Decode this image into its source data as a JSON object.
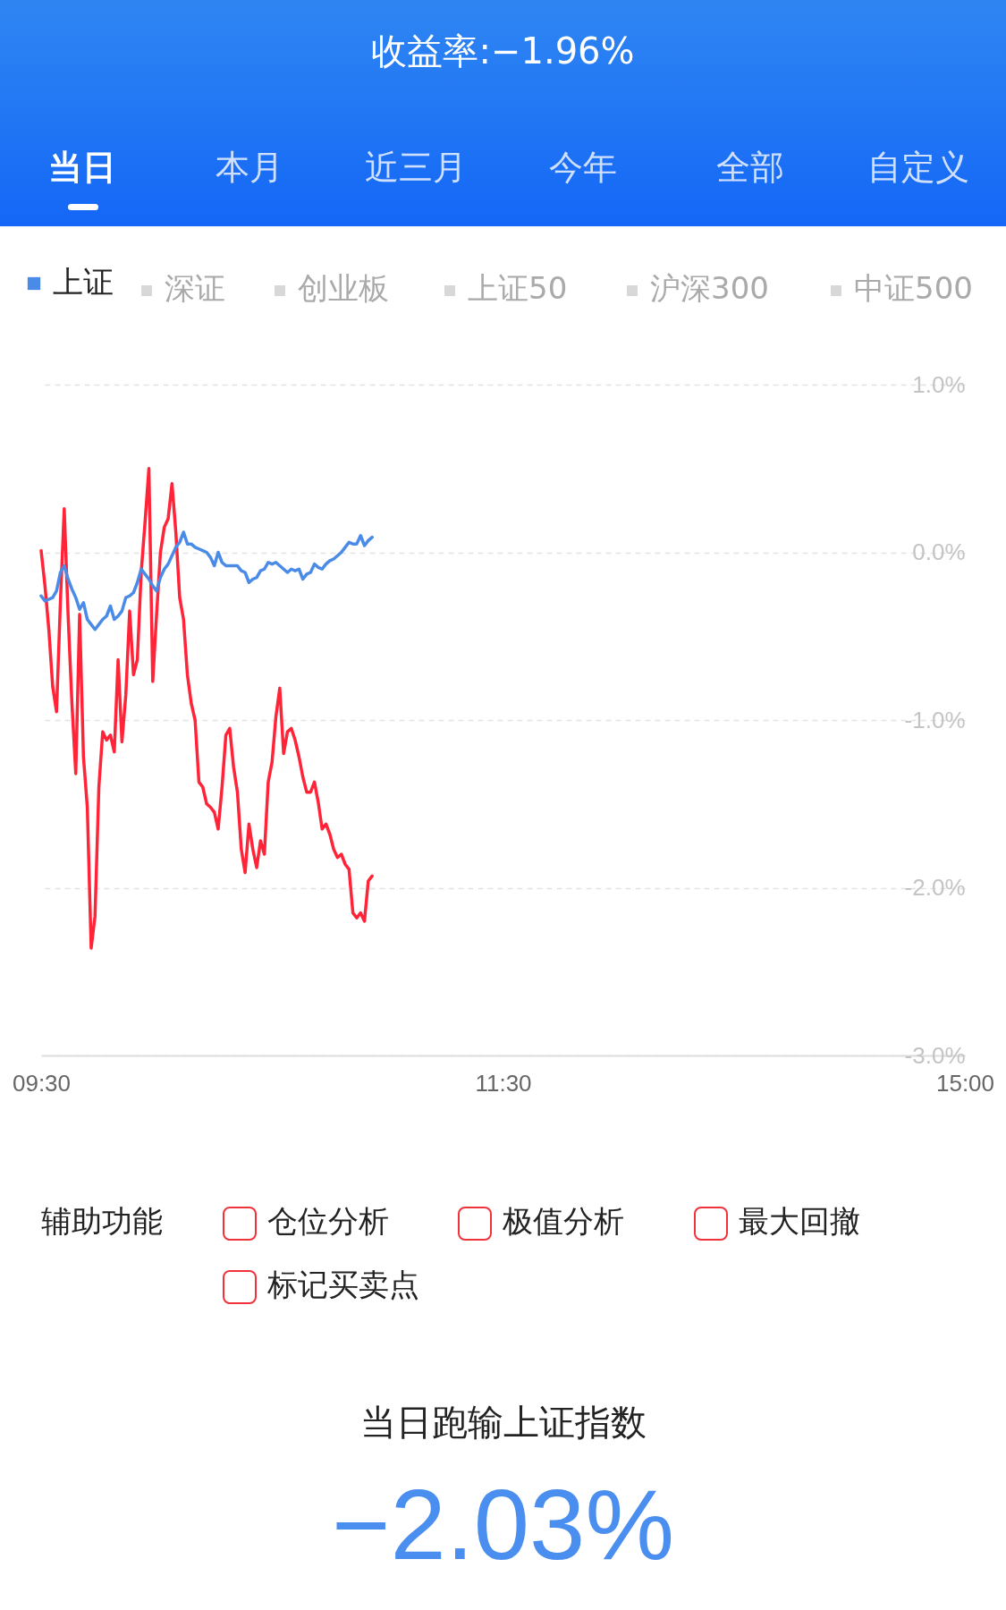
{
  "chart_data": {
    "type": "line",
    "title": "收益率:−1.96%",
    "annotations": [
      "当日",
      "本月",
      "近三月",
      "今年",
      "全部",
      "自定义",
      "深证",
      "创业板",
      "上证50",
      "沪深300",
      "中证500",
      "辅助功能",
      "仓位分析",
      "极值分析",
      "最大回撤",
      "标记买卖点",
      "当日跑输上证指数",
      "−2.03%"
    ],
    "categories": [
      "09:30",
      null,
      null,
      null,
      null,
      null,
      null,
      null,
      null,
      null,
      null,
      null,
      null,
      null,
      null,
      null,
      null,
      null,
      null,
      null,
      null,
      null,
      null,
      null,
      null,
      null,
      null,
      null,
      null,
      null,
      null,
      null,
      null,
      null,
      null,
      null,
      null,
      null,
      null,
      null,
      null,
      null,
      null,
      null,
      null,
      null,
      null,
      null,
      null,
      null,
      null,
      null,
      null,
      null,
      null,
      null,
      null,
      null,
      null,
      null,
      null,
      null,
      null,
      null,
      null,
      null,
      null,
      null,
      null,
      null,
      null,
      null,
      null,
      null,
      null,
      null,
      null,
      null,
      null,
      null,
      null,
      null,
      null,
      null,
      null,
      null,
      null,
      null,
      null,
      null,
      null,
      null,
      null,
      null,
      null,
      null,
      null,
      null,
      null,
      null,
      null,
      null,
      null,
      null,
      null,
      null,
      null,
      null,
      null,
      null,
      null,
      null,
      null,
      null,
      null,
      null,
      null,
      null,
      null,
      null,
      "11:30",
      null,
      null,
      null,
      null,
      null,
      null,
      null,
      null,
      null,
      null,
      null,
      null,
      null,
      null,
      null,
      null,
      null,
      null,
      null,
      null,
      null,
      null,
      null,
      null,
      null,
      null,
      null,
      null,
      null,
      null,
      null,
      null,
      null,
      null,
      null,
      null,
      null,
      null,
      null,
      null,
      null,
      null,
      null,
      null,
      null,
      null,
      null,
      null,
      null,
      null,
      null,
      null,
      null,
      null,
      null,
      null,
      null,
      null,
      null,
      null,
      null,
      null,
      null,
      null,
      null,
      null,
      null,
      null,
      null,
      null,
      null,
      null,
      null,
      null,
      null,
      null,
      null,
      null,
      null,
      null,
      null,
      null,
      null,
      null,
      null,
      null,
      null,
      null,
      null,
      null,
      null,
      null,
      null,
      null,
      null,
      null,
      null,
      null,
      null,
      null,
      null,
      null,
      null,
      null,
      null,
      null,
      null,
      null,
      null,
      null,
      null,
      null,
      null,
      null,
      null,
      null,
      null,
      null,
      null,
      "15:00"
    ],
    "series": [
      {
        "color": "#ff2438",
        "values": [
          0.01,
          -0.2,
          -0.46,
          -0.8,
          -0.95,
          -0.3,
          0.26,
          -0.37,
          -0.9,
          -1.32,
          -0.37,
          -1.22,
          -1.52,
          -2.36,
          -2.17,
          -1.4,
          -1.07,
          -1.12,
          -1.09,
          -1.19,
          -0.64,
          -1.13,
          -0.85,
          -0.35,
          -0.73,
          -0.64,
          -0.12,
          0.18,
          0.5,
          -0.77,
          -0.37,
          0.0,
          0.15,
          0.2,
          0.41,
          0.12,
          -0.27,
          -0.4,
          -0.73,
          -0.9,
          -1.0,
          -1.37,
          -1.4,
          -1.5,
          -1.52,
          -1.55,
          -1.65,
          -1.4,
          -1.09,
          -1.05,
          -1.28,
          -1.43,
          -1.77,
          -1.91,
          -1.62,
          -1.77,
          -1.88,
          -1.72,
          -1.8,
          -1.37,
          -1.25,
          -0.98,
          -0.81,
          -1.2,
          -1.07,
          -1.05,
          -1.12,
          -1.22,
          -1.34,
          -1.43,
          -1.43,
          -1.37,
          -1.49,
          -1.65,
          -1.62,
          -1.68,
          -1.77,
          -1.82,
          -1.8,
          -1.86,
          -1.89,
          -2.15,
          -2.18,
          -2.15,
          -2.2,
          -1.96,
          -1.93,
          null,
          null,
          null,
          null,
          null,
          null,
          null,
          null,
          null,
          null,
          null,
          null,
          null,
          null,
          null,
          null,
          null,
          null,
          null,
          null,
          null,
          null,
          null,
          null,
          null,
          null,
          null,
          null,
          null,
          null,
          null,
          null,
          null,
          null,
          null,
          null,
          null,
          null,
          null,
          null,
          null,
          null,
          null,
          null,
          null,
          null,
          null,
          null,
          null,
          null,
          null,
          null,
          null,
          null,
          null,
          null,
          null,
          null,
          null,
          null,
          null,
          null,
          null,
          null,
          null,
          null,
          null,
          null,
          null,
          null,
          null,
          null,
          null,
          null,
          null,
          null,
          null,
          null,
          null,
          null,
          null,
          null,
          null,
          null,
          null,
          null,
          null,
          null,
          null,
          null,
          null,
          null,
          null,
          null,
          null,
          null,
          null,
          null,
          null,
          null,
          null,
          null,
          null,
          null,
          null,
          null,
          null,
          null,
          null,
          null,
          null,
          null,
          null,
          null,
          null,
          null,
          null,
          null,
          null,
          null,
          null,
          null,
          null,
          null,
          null,
          null,
          null,
          null,
          null,
          null,
          null,
          null,
          null,
          null,
          null,
          null,
          null,
          null,
          null,
          null,
          null,
          null,
          null,
          null,
          null,
          null,
          null,
          null,
          null,
          null,
          null,
          null,
          null,
          null
        ]
      },
      {
        "name": "上证",
        "color": "#4a8be8",
        "values": [
          -0.26,
          -0.29,
          -0.28,
          -0.27,
          -0.23,
          -0.12,
          -0.08,
          -0.16,
          -0.22,
          -0.27,
          -0.34,
          -0.3,
          -0.4,
          -0.43,
          -0.46,
          -0.43,
          -0.4,
          -0.38,
          -0.32,
          -0.4,
          -0.38,
          -0.35,
          -0.27,
          -0.26,
          -0.24,
          -0.18,
          -0.1,
          -0.13,
          -0.16,
          -0.2,
          -0.23,
          -0.15,
          -0.1,
          -0.07,
          -0.02,
          0.03,
          0.06,
          0.12,
          0.05,
          0.05,
          0.03,
          0.02,
          0.01,
          0.0,
          -0.03,
          -0.08,
          0.0,
          -0.06,
          -0.08,
          -0.08,
          -0.08,
          -0.08,
          -0.11,
          -0.12,
          -0.18,
          -0.16,
          -0.15,
          -0.11,
          -0.1,
          -0.06,
          -0.07,
          -0.06,
          -0.08,
          -0.1,
          -0.12,
          -0.1,
          -0.11,
          -0.1,
          -0.16,
          -0.13,
          -0.12,
          -0.07,
          -0.09,
          -0.1,
          -0.07,
          -0.05,
          -0.04,
          -0.02,
          0.0,
          0.03,
          0.06,
          0.05,
          0.05,
          0.1,
          0.04,
          0.07,
          0.09,
          null,
          null,
          null,
          null,
          null,
          null,
          null,
          null,
          null,
          null,
          null,
          null,
          null,
          null,
          null,
          null,
          null,
          null,
          null,
          null,
          null,
          null,
          null,
          null,
          null,
          null,
          null,
          null,
          null,
          null,
          null,
          null,
          null,
          null,
          null,
          null,
          null,
          null,
          null,
          null,
          null,
          null,
          null,
          null,
          null,
          null,
          null,
          null,
          null,
          null,
          null,
          null,
          null,
          null,
          null,
          null,
          null,
          null,
          null,
          null,
          null,
          null,
          null,
          null,
          null,
          null,
          null,
          null,
          null,
          null,
          null,
          null,
          null,
          null,
          null,
          null,
          null,
          null,
          null,
          null,
          null,
          null,
          null,
          null,
          null,
          null,
          null,
          null,
          null,
          null,
          null,
          null,
          null,
          null,
          null,
          null,
          null,
          null,
          null,
          null,
          null,
          null,
          null,
          null,
          null,
          null,
          null,
          null,
          null,
          null,
          null,
          null,
          null,
          null,
          null,
          null,
          null,
          null,
          null,
          null,
          null,
          null,
          null,
          null,
          null,
          null,
          null,
          null,
          null,
          null,
          null,
          null,
          null,
          null,
          null,
          null,
          null,
          null,
          null,
          null,
          null,
          null,
          null,
          null,
          null,
          null,
          null,
          null,
          null,
          null,
          null,
          null,
          null,
          null
        ]
      }
    ],
    "ylim": [
      -3,
      1
    ],
    "yticks": [
      {
        "value": 1,
        "label": "1.0%"
      },
      {
        "value": 0,
        "label": "0.0%"
      },
      {
        "value": -1,
        "label": "-1.0%"
      },
      {
        "value": -2,
        "label": "-2.0%"
      },
      {
        "value": -3,
        "label": "-3.0%"
      }
    ],
    "grid": "y",
    "legend": "top left",
    "line_style": "solid",
    "marker": "none"
  }
}
